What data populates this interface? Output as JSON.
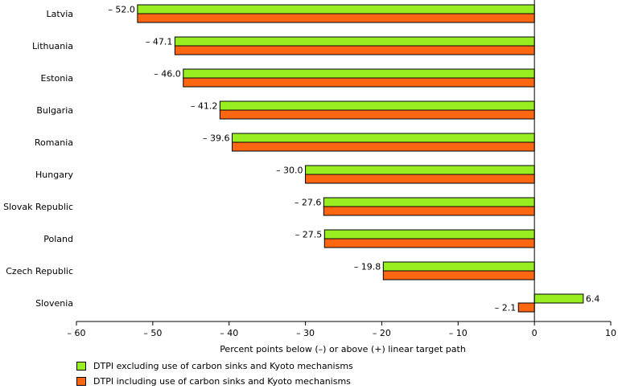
{
  "chart_data": {
    "type": "bar",
    "orientation": "horizontal",
    "categories": [
      "Latvia",
      "Lithuania",
      "Estonia",
      "Bulgaria",
      "Romania",
      "Hungary",
      "Slovak Republic",
      "Poland",
      "Czech Republic",
      "Slovenia"
    ],
    "series": [
      {
        "name": "DTPI excluding use of carbon sinks and Kyoto mechanisms",
        "color": "#99ee22",
        "values": [
          -52.0,
          -47.1,
          -46.0,
          -41.2,
          -39.6,
          -30.0,
          -27.6,
          -27.5,
          -19.8,
          6.4
        ],
        "labels": [
          "– 52.0",
          "– 47.1",
          "– 46.0",
          "– 41.2",
          "– 39.6",
          "– 30.0",
          "– 27.6",
          "– 27.5",
          "– 19.8",
          "6.4"
        ]
      },
      {
        "name": "DTPI including use of carbon sinks and Kyoto mechanisms",
        "color": "#ff6611",
        "values": [
          -52.0,
          -47.1,
          -46.0,
          -41.2,
          -39.6,
          -30.0,
          -27.6,
          -27.5,
          -19.8,
          -2.1
        ],
        "labels": [
          "",
          "",
          "",
          "",
          "",
          "",
          "",
          "",
          "",
          "– 2.1"
        ]
      }
    ],
    "xlabel": "Percent points below (–) or above (+) linear target path",
    "xlim": [
      -60,
      10
    ],
    "xticks": [
      -60,
      -50,
      -40,
      -30,
      -20,
      -10,
      0,
      10
    ],
    "xtick_labels": [
      "– 60",
      "– 50",
      "– 40",
      "– 30",
      "– 20",
      "– 10",
      "0",
      "10"
    ],
    "grid": false,
    "legend_position": "bottom-left"
  }
}
